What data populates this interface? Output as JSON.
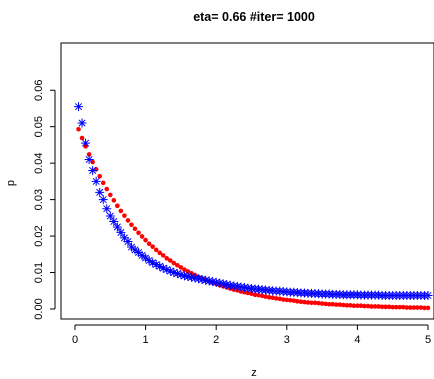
{
  "chart_data": {
    "type": "scatter",
    "title": "eta= 0.66 #iter= 1000",
    "xlabel": "z",
    "ylabel": "p",
    "xlim": [
      0,
      5
    ],
    "ylim": [
      0,
      0.065
    ],
    "xticks": [
      "0",
      "1",
      "2",
      "3",
      "4",
      "5"
    ],
    "yticks": [
      "0.00",
      "0.01",
      "0.02",
      "0.03",
      "0.04",
      "0.05",
      "0.06"
    ],
    "grid": false,
    "series": [
      {
        "marker": "filled-circle",
        "color": "#ff0000",
        "x": [
          0.05,
          0.1,
          0.15,
          0.2,
          0.25,
          0.3,
          0.35,
          0.4,
          0.45,
          0.5,
          0.55,
          0.6,
          0.65,
          0.7,
          0.75,
          0.8,
          0.85,
          0.9,
          0.95,
          1.0,
          1.05,
          1.1,
          1.15,
          1.2,
          1.25,
          1.3,
          1.35,
          1.4,
          1.45,
          1.5,
          1.55,
          1.6,
          1.65,
          1.7,
          1.75,
          1.8,
          1.85,
          1.9,
          1.95,
          2.0,
          2.05,
          2.1,
          2.15,
          2.2,
          2.25,
          2.3,
          2.35,
          2.4,
          2.45,
          2.5,
          2.55,
          2.6,
          2.65,
          2.7,
          2.75,
          2.8,
          2.85,
          2.9,
          2.95,
          3.0,
          3.05,
          3.1,
          3.15,
          3.2,
          3.25,
          3.3,
          3.35,
          3.4,
          3.45,
          3.5,
          3.55,
          3.6,
          3.65,
          3.7,
          3.75,
          3.8,
          3.85,
          3.9,
          3.95,
          4.0,
          4.05,
          4.1,
          4.15,
          4.2,
          4.25,
          4.3,
          4.35,
          4.4,
          4.45,
          4.5,
          4.55,
          4.6,
          4.65,
          4.7,
          4.75,
          4.8,
          4.85,
          4.9,
          4.95,
          5.0
        ],
        "y": [
          0.0493,
          0.0469,
          0.0446,
          0.0424,
          0.0403,
          0.0383,
          0.0364,
          0.0346,
          0.0329,
          0.0313,
          0.0298,
          0.0283,
          0.0269,
          0.0256,
          0.0243,
          0.0231,
          0.022,
          0.0209,
          0.0199,
          0.0189,
          0.0179,
          0.0171,
          0.0162,
          0.0154,
          0.0147,
          0.0139,
          0.0133,
          0.0126,
          0.012,
          0.0114,
          0.0108,
          0.0103,
          0.0098,
          0.0093,
          0.0088,
          0.0084,
          0.008,
          0.0076,
          0.0072,
          0.0069,
          0.0065,
          0.0062,
          0.0059,
          0.0056,
          0.0053,
          0.0051,
          0.0048,
          0.0046,
          0.0044,
          0.0042,
          0.0039,
          0.0038,
          0.0036,
          0.0034,
          0.0032,
          0.0031,
          0.0029,
          0.0028,
          0.0026,
          0.0025,
          0.0024,
          0.0023,
          0.0021,
          0.002,
          0.0019,
          0.0018,
          0.0017,
          0.0017,
          0.0016,
          0.0015,
          0.0014,
          0.0013,
          0.0013,
          0.0012,
          0.0012,
          0.0011,
          0.001,
          0.001,
          0.0009,
          0.0009,
          0.0009,
          0.0008,
          0.0008,
          0.0007,
          0.0007,
          0.0007,
          0.0006,
          0.0006,
          0.0006,
          0.0005,
          0.0005,
          0.0005,
          0.0005,
          0.0004,
          0.0004,
          0.0004,
          0.0004,
          0.0004,
          0.0003,
          0.0003
        ]
      },
      {
        "marker": "asterisk",
        "color": "#0000ff",
        "x": [
          0.05,
          0.1,
          0.15,
          0.2,
          0.25,
          0.3,
          0.35,
          0.4,
          0.45,
          0.5,
          0.55,
          0.6,
          0.65,
          0.7,
          0.75,
          0.8,
          0.85,
          0.9,
          0.95,
          1.0,
          1.05,
          1.1,
          1.15,
          1.2,
          1.25,
          1.3,
          1.35,
          1.4,
          1.45,
          1.5,
          1.55,
          1.6,
          1.65,
          1.7,
          1.75,
          1.8,
          1.85,
          1.9,
          1.95,
          2.0,
          2.05,
          2.1,
          2.15,
          2.2,
          2.25,
          2.3,
          2.35,
          2.4,
          2.45,
          2.5,
          2.55,
          2.6,
          2.65,
          2.7,
          2.75,
          2.8,
          2.85,
          2.9,
          2.95,
          3.0,
          3.05,
          3.1,
          3.15,
          3.2,
          3.25,
          3.3,
          3.35,
          3.4,
          3.45,
          3.5,
          3.55,
          3.6,
          3.65,
          3.7,
          3.75,
          3.8,
          3.85,
          3.9,
          3.95,
          4.0,
          4.05,
          4.1,
          4.15,
          4.2,
          4.25,
          4.3,
          4.35,
          4.4,
          4.45,
          4.5,
          4.55,
          4.6,
          4.65,
          4.7,
          4.75,
          4.8,
          4.85,
          4.9,
          4.95,
          5.0
        ],
        "y": [
          0.0555,
          0.051,
          0.0455,
          0.041,
          0.038,
          0.035,
          0.032,
          0.03,
          0.0275,
          0.0255,
          0.024,
          0.0225,
          0.021,
          0.0195,
          0.0185,
          0.017,
          0.0162,
          0.0155,
          0.0147,
          0.014,
          0.0133,
          0.0127,
          0.0122,
          0.0117,
          0.0112,
          0.0108,
          0.0104,
          0.01,
          0.0097,
          0.0094,
          0.0091,
          0.0089,
          0.0087,
          0.0085,
          0.0083,
          0.0081,
          0.0079,
          0.0077,
          0.0075,
          0.0073,
          0.0071,
          0.0069,
          0.0067,
          0.0065,
          0.0063,
          0.0062,
          0.006,
          0.0059,
          0.0057,
          0.0056,
          0.0055,
          0.0054,
          0.0053,
          0.0052,
          0.0051,
          0.005,
          0.0049,
          0.0049,
          0.0048,
          0.0047,
          0.0046,
          0.0046,
          0.0045,
          0.0044,
          0.0044,
          0.0043,
          0.0043,
          0.0042,
          0.0042,
          0.0041,
          0.0041,
          0.0041,
          0.004,
          0.004,
          0.004,
          0.0039,
          0.0039,
          0.0039,
          0.0039,
          0.0039,
          0.0038,
          0.0038,
          0.0038,
          0.0038,
          0.0038,
          0.0038,
          0.0037,
          0.0037,
          0.0037,
          0.0037,
          0.0037,
          0.0037,
          0.0037,
          0.0037,
          0.0037,
          0.0037,
          0.0037,
          0.0037,
          0.0037,
          0.0037
        ]
      }
    ]
  }
}
